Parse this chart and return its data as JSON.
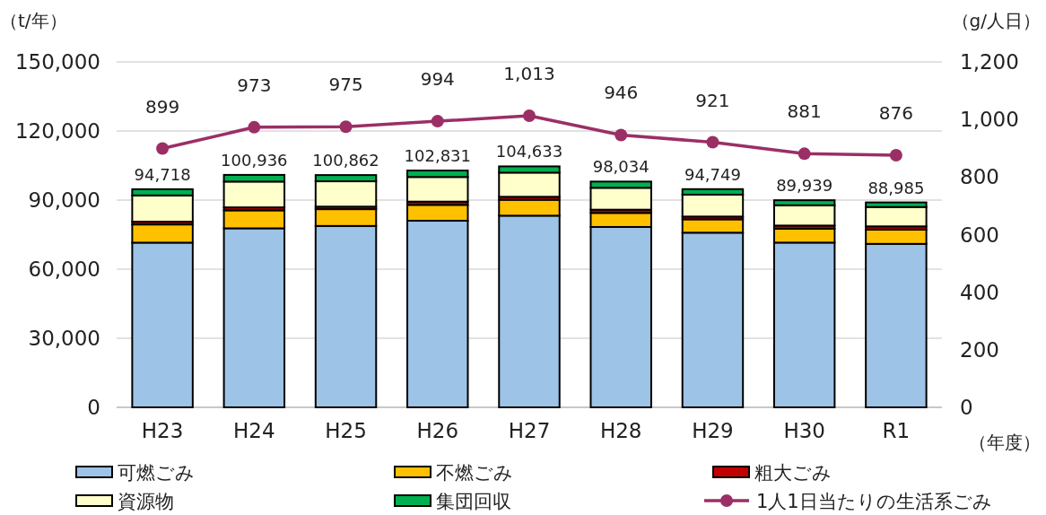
{
  "chart_data": {
    "type": "bar",
    "stacked": true,
    "xlabel": "（年度）",
    "ylabel": "（t/年）",
    "y2label": "（g/人日）",
    "categories": [
      "H23",
      "H24",
      "H25",
      "H26",
      "H27",
      "H28",
      "H29",
      "H30",
      "R1"
    ],
    "series": [
      {
        "name": "可燃ごみ",
        "color": "#9dc3e6",
        "values": [
          71518,
          77736,
          78762,
          81031,
          83233,
          78334,
          75849,
          71539,
          70985
        ]
      },
      {
        "name": "不燃ごみ",
        "color": "#ffc000",
        "values": [
          7900,
          7800,
          7300,
          6900,
          6900,
          6100,
          5800,
          6000,
          6200
        ]
      },
      {
        "name": "粗大ごみ",
        "color": "#c00000",
        "values": [
          1200,
          1300,
          1100,
          1400,
          1300,
          1400,
          1200,
          1400,
          1400
        ]
      },
      {
        "name": "資源物",
        "color": "#ffffcc",
        "values": [
          11400,
          11200,
          11000,
          10700,
          10500,
          9500,
          9500,
          8800,
          8400
        ]
      },
      {
        "name": "集団回収",
        "color": "#00b050",
        "values": [
          2700,
          2900,
          2700,
          2800,
          2700,
          2700,
          2400,
          2200,
          2000
        ]
      },
      {
        "name": "1人1日当たりの生活系ごみ",
        "type": "line",
        "axis": "y2",
        "color": "#9b2f65",
        "marker": "circle",
        "values": [
          899,
          973,
          975,
          994,
          1013,
          946,
          921,
          881,
          876
        ],
        "value_labels": [
          "899",
          "973",
          "975",
          "994",
          "1,013",
          "946",
          "921",
          "881",
          "876"
        ]
      }
    ],
    "totals": [
      "94,718",
      "100,936",
      "100,862",
      "102,831",
      "104,633",
      "98,034",
      "94,749",
      "89,939",
      "88,985"
    ],
    "ylim": [
      0,
      150000
    ],
    "yticks": [
      {
        "value": 0,
        "label": "0"
      },
      {
        "value": 30000,
        "label": "30,000"
      },
      {
        "value": 60000,
        "label": "60,000"
      },
      {
        "value": 90000,
        "label": "90,000"
      },
      {
        "value": 120000,
        "label": "120,000"
      },
      {
        "value": 150000,
        "label": "150,000"
      }
    ],
    "y2lim": [
      0,
      1200
    ],
    "y2ticks": [
      {
        "value": 0,
        "label": "0"
      },
      {
        "value": 200,
        "label": "200"
      },
      {
        "value": 400,
        "label": "400"
      },
      {
        "value": 600,
        "label": "600"
      },
      {
        "value": 800,
        "label": "800"
      },
      {
        "value": 1000,
        "label": "1,000"
      },
      {
        "value": 1200,
        "label": "1,200"
      }
    ],
    "grid": "y",
    "legend": "bottom"
  }
}
